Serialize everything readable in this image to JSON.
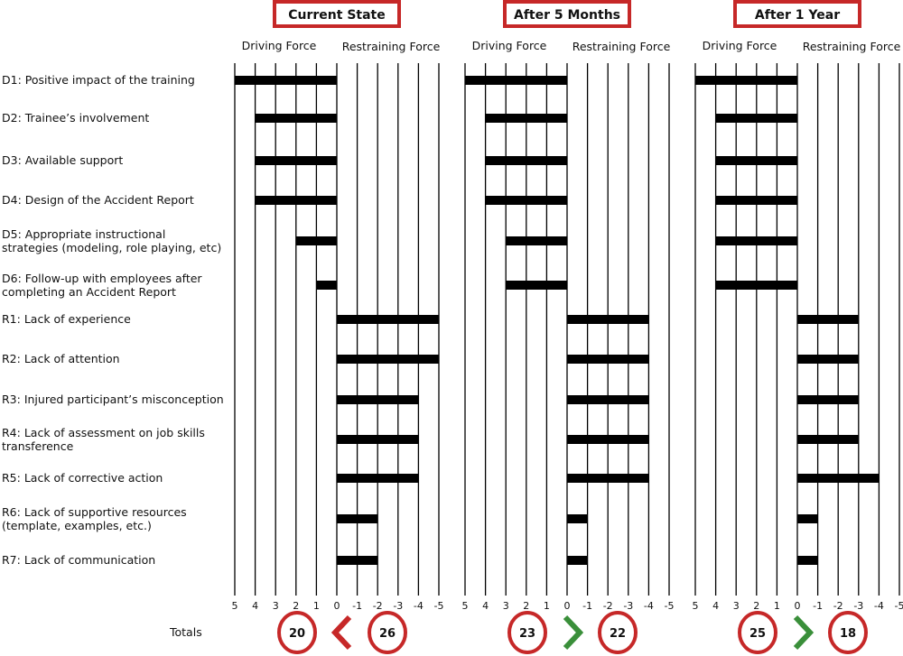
{
  "chart_data": {
    "type": "bar",
    "subtype": "force-field-analysis",
    "categories": [
      "D1: Positive impact of the training",
      "D2: Trainee’s involvement",
      "D3: Available support",
      "D4: Design of the Accident Report",
      "D5: Appropriate instructional strategies (modeling, role playing, etc)",
      "D6: Follow-up with employees after completing an Accident Report",
      "R1: Lack of experience",
      "R2: Lack of attention",
      "R3: Injured participant’s misconception",
      "R4: Lack of assessment on job skills transference",
      "R5: Lack of corrective action",
      "R6: Lack of supportive resources (template, examples, etc.)",
      "R7: Lack of communication"
    ],
    "category_lines": [
      [
        "D1: Positive impact of the training"
      ],
      [
        "D2: Trainee’s involvement"
      ],
      [
        "D3: Available support"
      ],
      [
        "D4: Design of the Accident Report"
      ],
      [
        "D5: Appropriate instructional",
        "strategies (modeling, role playing, etc)"
      ],
      [
        "D6: Follow-up with employees after",
        "completing an Accident Report"
      ],
      [
        "R1: Lack of experience"
      ],
      [
        "R2: Lack of attention"
      ],
      [
        "R3: Injured participant’s misconception"
      ],
      [
        "R4: Lack of assessment on job skills",
        "transference"
      ],
      [
        "R5: Lack of corrective action"
      ],
      [
        "R6: Lack of supportive resources",
        "(template, examples, etc.)"
      ],
      [
        "R7: Lack of communication"
      ]
    ],
    "x_ticks": [
      "5",
      "4",
      "3",
      "2",
      "1",
      "0",
      "-1",
      "-2",
      "-3",
      "-4",
      "-5"
    ],
    "xlim": [
      5,
      -5
    ],
    "driving_label": "Driving Force",
    "restraining_label": "Restraining Force",
    "totals_label": "Totals",
    "panels": [
      {
        "title": "Current State",
        "values": [
          5,
          4,
          4,
          4,
          2,
          1,
          -5,
          -5,
          -4,
          -4,
          -4,
          -2,
          -2
        ],
        "driving_total": "20",
        "restraining_total": "26",
        "comparison": "<",
        "comparison_color": "#c62828"
      },
      {
        "title": "After 5 Months",
        "values": [
          5,
          4,
          4,
          4,
          3,
          3,
          -4,
          -4,
          -4,
          -4,
          -4,
          -1,
          -1
        ],
        "driving_total": "23",
        "restraining_total": "22",
        "comparison": ">",
        "comparison_color": "#3a8f3a"
      },
      {
        "title": "After 1 Year",
        "values": [
          5,
          4,
          4,
          4,
          4,
          4,
          -3,
          -3,
          -3,
          -3,
          -4,
          -1,
          -1
        ],
        "driving_total": "25",
        "restraining_total": "18",
        "comparison": ">",
        "comparison_color": "#3a8f3a"
      }
    ],
    "colors": {
      "bar": "#000000",
      "frame": "#c62828",
      "circle": "#c62828"
    },
    "grid": true
  }
}
